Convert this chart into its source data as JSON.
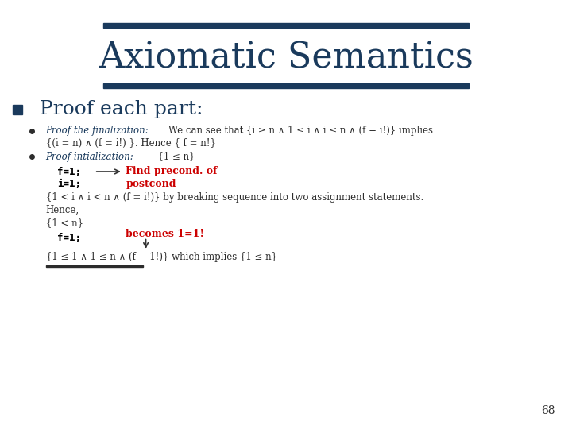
{
  "title": "Axiomatic Semantics",
  "title_color": "#1a3a5c",
  "title_fontsize": 32,
  "bullet_color": "#1a3a5c",
  "text_color": "#2c2c2c",
  "red_color": "#cc0000",
  "mono_color": "#000000",
  "bg_color": "#ffffff",
  "bar_color": "#1a3a5c",
  "page_number": "68",
  "main_bullet": "Proof each part:",
  "finalization_label": "Proof the finalization:",
  "finalization_text": "We can see that {i ≥ n ∧ 1 ≤ i ∧ i ≤ n ∧ (f − i!)} implies",
  "finalization_text2": "{(i = n) ∧ (f = i!) }. Hence { f = n!}",
  "initialization_label": "Proof intialization:",
  "initialization_text": "  {1 ≤ n}",
  "code1": "f=1;",
  "code2": "i=1;",
  "annotation1": "Find precond. of",
  "annotation2": "postcond",
  "body_text1": "{1 < i ∧ i < n ∧ (f = i!)} by breaking sequence into two assignment statements.",
  "body_text2": "Hence,",
  "body_text3": "{1 < n}",
  "code3": "f=1;",
  "annotation3": "becomes 1=1!",
  "final_text": "{1 ≤ 1 ∧ 1 ≤ n ∧ (f − 1!)} which implies {1 ≤ n}"
}
